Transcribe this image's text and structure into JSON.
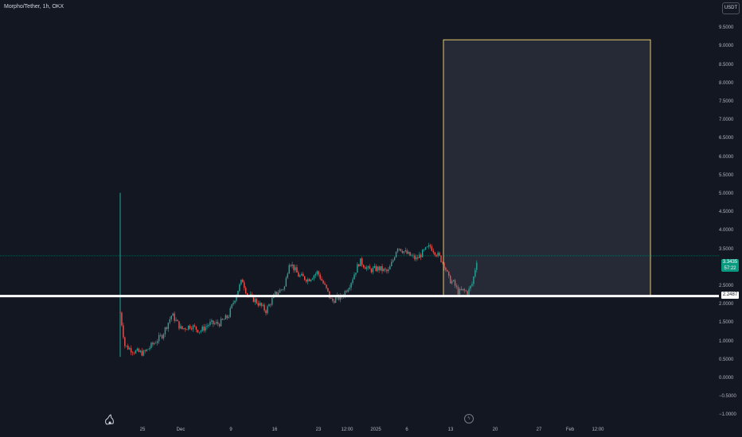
{
  "header": {
    "symbol_title": "Morpho/Tether, 1h, OKX",
    "currency_label": "USDT"
  },
  "colors": {
    "background": "#131722",
    "up": "#26a69a",
    "down": "#ef5350",
    "box_border": "#e6c86e",
    "box_fill": "#2a2e39",
    "support_line": "#ffffff"
  },
  "y_axis": {
    "ticks": [
      "9.5000",
      "9.0000",
      "8.5000",
      "8.0000",
      "7.5000",
      "7.0000",
      "6.5000",
      "6.0000",
      "5.5000",
      "5.0000",
      "4.5000",
      "4.0000",
      "3.5000",
      "2.5000",
      "2.0000",
      "1.5000",
      "1.0000",
      "0.5000",
      "0.0000",
      "−0.5000",
      "−1.0000"
    ]
  },
  "x_axis": {
    "ticks": [
      "25",
      "Dec",
      "9",
      "16",
      "23",
      "12:00",
      "2025",
      "6",
      "13",
      "20",
      "27",
      "Feb",
      "12:00"
    ]
  },
  "last_price": {
    "value": "3.3435",
    "countdown": "57:22"
  },
  "support_level": {
    "label": "2.2487"
  },
  "flash_icon": "lightning-icon",
  "chart_data": {
    "type": "candlestick",
    "title": "Morpho/Tether, 1h, OKX",
    "xlabel": "",
    "ylabel": "",
    "ylim": [
      -1.0,
      10.0
    ],
    "y_ticks": [
      9.5,
      9.0,
      8.5,
      8.0,
      7.5,
      7.0,
      6.5,
      6.0,
      5.5,
      5.0,
      4.5,
      4.0,
      3.5,
      3.0,
      2.5,
      2.0,
      1.5,
      1.0,
      0.5,
      0.0,
      -0.5,
      -1.0
    ],
    "x_ticks": [
      "25",
      "Dec",
      "9",
      "16",
      "23",
      "12:00",
      "2025",
      "6",
      "13",
      "20",
      "27",
      "Feb",
      "12:00"
    ],
    "price_path": [
      [
        0,
        1.8
      ],
      [
        1,
        0.9
      ],
      [
        3,
        0.75
      ],
      [
        5,
        0.7
      ],
      [
        7,
        0.95
      ],
      [
        9,
        1.2
      ],
      [
        11,
        1.75
      ],
      [
        13,
        1.35
      ],
      [
        15,
        1.45
      ],
      [
        17,
        1.3
      ],
      [
        19,
        1.5
      ],
      [
        21,
        1.5
      ],
      [
        23,
        1.7
      ],
      [
        25,
        2.4
      ],
      [
        26,
        2.7
      ],
      [
        27,
        2.3
      ],
      [
        29,
        2.1
      ],
      [
        31,
        1.85
      ],
      [
        33,
        2.3
      ],
      [
        35,
        2.5
      ],
      [
        36,
        3.2
      ],
      [
        38,
        2.8
      ],
      [
        40,
        2.7
      ],
      [
        42,
        2.9
      ],
      [
        44,
        2.4
      ],
      [
        45,
        2.1
      ],
      [
        46,
        2.2
      ],
      [
        47,
        2.2
      ],
      [
        49,
        2.6
      ],
      [
        51,
        3.2
      ],
      [
        53,
        2.95
      ],
      [
        55,
        3.0
      ],
      [
        57,
        2.9
      ],
      [
        58,
        3.2
      ],
      [
        59,
        3.6
      ],
      [
        61,
        3.4
      ],
      [
        63,
        3.25
      ],
      [
        65,
        3.5
      ],
      [
        66,
        3.6
      ],
      [
        68,
        3.3
      ],
      [
        69,
        3.1
      ],
      [
        70,
        2.7
      ],
      [
        71,
        2.6
      ],
      [
        72,
        2.35
      ],
      [
        73,
        2.4
      ],
      [
        74,
        2.35
      ],
      [
        75,
        2.6
      ],
      [
        76,
        3.3
      ]
    ],
    "path_x_unit": "ticks in x_ticks spacing units (approx. 1 unit per ~8 px)",
    "spike": {
      "high": 5.05,
      "low": 0.6
    },
    "last_price": 3.3435,
    "support_level": 2.2487,
    "target_box": {
      "price_top": 9.2,
      "price_bottom": 2.2487
    },
    "grid": false,
    "legend": "none"
  }
}
